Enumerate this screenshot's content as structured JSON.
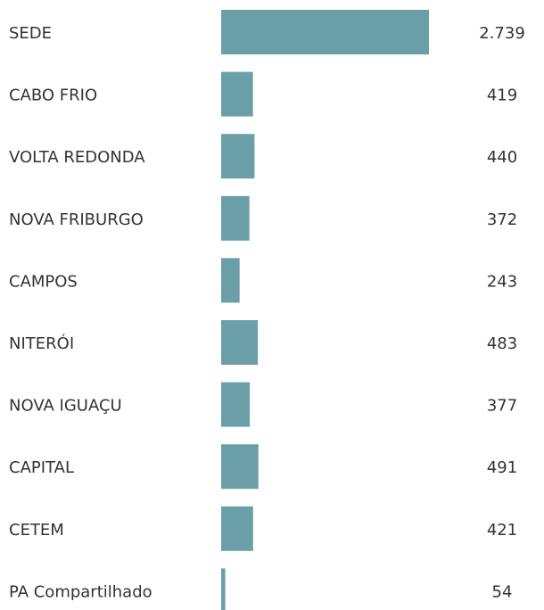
{
  "chart_data": {
    "type": "bar",
    "categories": [
      "SEDE",
      "CABO FRIO",
      "VOLTA REDONDA",
      "NOVA FRIBURGO",
      "CAMPOS",
      "NITERÓI",
      "NOVA IGUAÇU",
      "CAPITAL",
      "CETEM",
      "PA Compartilhado"
    ],
    "values": [
      2739,
      419,
      440,
      372,
      243,
      483,
      377,
      491,
      421,
      54
    ],
    "value_labels": [
      "2.739",
      "419",
      "440",
      "372",
      "243",
      "483",
      "377",
      "491",
      "421",
      "54"
    ],
    "color": "#6b9fa8"
  }
}
